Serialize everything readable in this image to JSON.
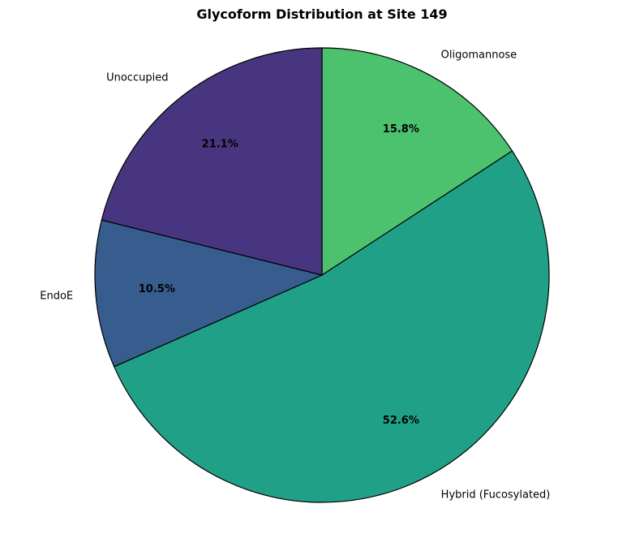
{
  "chart_data": {
    "type": "pie",
    "title": "Glycoform Distribution at Site 149",
    "categories": [
      "Oligomannose",
      "Hybrid (Fucosylated)",
      "EndoE",
      "Unoccupied"
    ],
    "values": [
      15.8,
      52.6,
      10.5,
      21.1
    ],
    "value_labels": [
      "15.8%",
      "52.6%",
      "10.5%",
      "21.1%"
    ],
    "colors": [
      "#4cc26f",
      "#20a187",
      "#365d8d",
      "#48357f"
    ],
    "start_angle_deg": 90,
    "direction": "clockwise",
    "edge_color": "#000000"
  }
}
